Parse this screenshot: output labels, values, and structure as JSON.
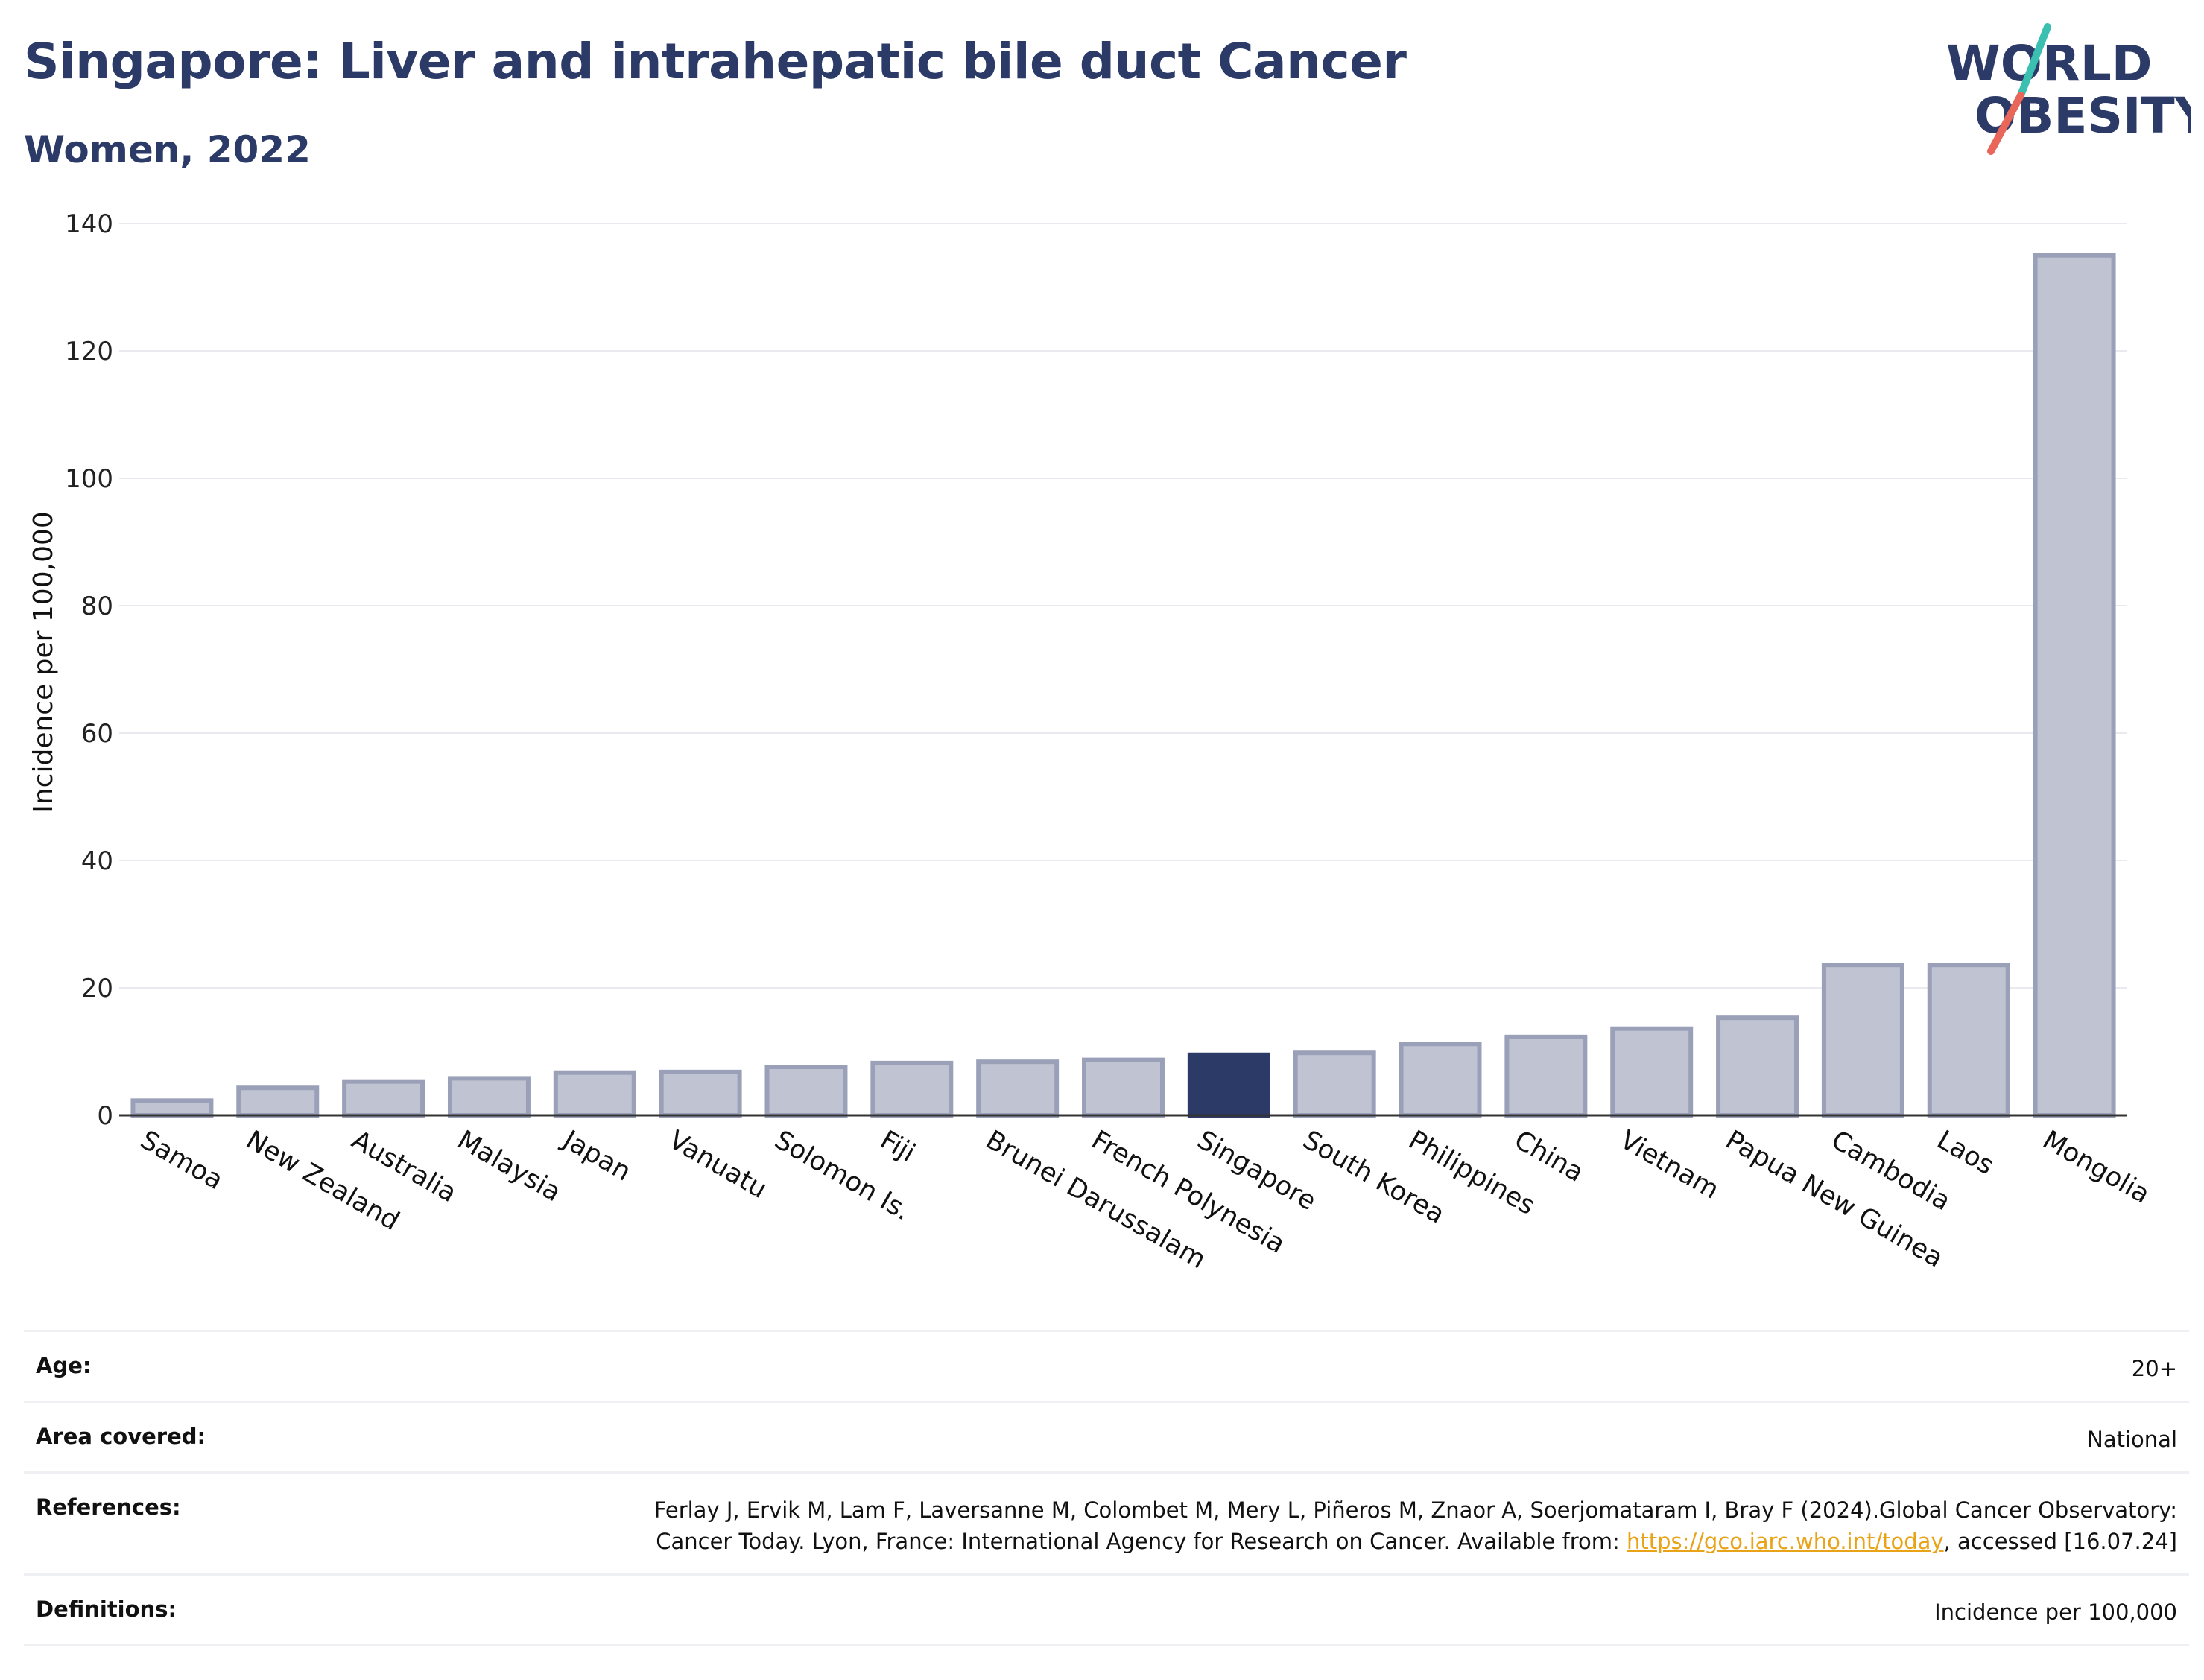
{
  "header": {
    "title": "Singapore: Liver and intrahepatic bile duct Cancer",
    "subtitle": "Women, 2022"
  },
  "logo": {
    "line1": "WORLD",
    "line2": "OBESITY",
    "colors": {
      "text": "#2b3a67",
      "slash_top": "#3bbfb0",
      "slash_bottom": "#e8665a"
    }
  },
  "chart_data": {
    "type": "bar",
    "ylabel": "Incidence per 100,000",
    "ylim": [
      0,
      140
    ],
    "yticks": [
      0,
      20,
      40,
      60,
      80,
      100,
      120,
      140
    ],
    "grid": true,
    "highlight": "Singapore",
    "categories": [
      "Samoa",
      "New Zealand",
      "Australia",
      "Malaysia",
      "Japan",
      "Vanuatu",
      "Solomon Is.",
      "Fiji",
      "Brunei Darussalam",
      "French Polynesia",
      "Singapore",
      "South Korea",
      "Philippines",
      "China",
      "Vietnam",
      "Papua New Guinea",
      "Cambodia",
      "Laos",
      "Mongolia"
    ],
    "values": [
      2.3,
      4.3,
      5.3,
      5.8,
      6.7,
      6.8,
      7.6,
      8.2,
      8.4,
      8.7,
      9.5,
      9.8,
      11.2,
      12.3,
      13.6,
      15.3,
      23.6,
      23.6,
      135.0
    ],
    "colors": {
      "bar": "#c0c4d2",
      "bar_border": "#9aa0b8",
      "highlight": "#2b3a67",
      "grid": "#e8eaef"
    }
  },
  "info_table": [
    {
      "label": "Age:",
      "value": "20+"
    },
    {
      "label": "Area covered:",
      "value": "National"
    },
    {
      "label": "References:",
      "value_pre": "Ferlay J, Ervik M, Lam F, Laversanne M, Colombet M, Mery L, Piñeros M, Znaor A, Soerjomataram I, Bray F (2024).Global Cancer Observatory: Cancer Today. Lyon, France: International Agency for Research on Cancer. Available from: ",
      "link": "https://gco.iarc.who.int/today",
      "value_post": ", accessed [16.07.24]"
    },
    {
      "label": "Definitions:",
      "value": "Incidence per 100,000"
    }
  ]
}
